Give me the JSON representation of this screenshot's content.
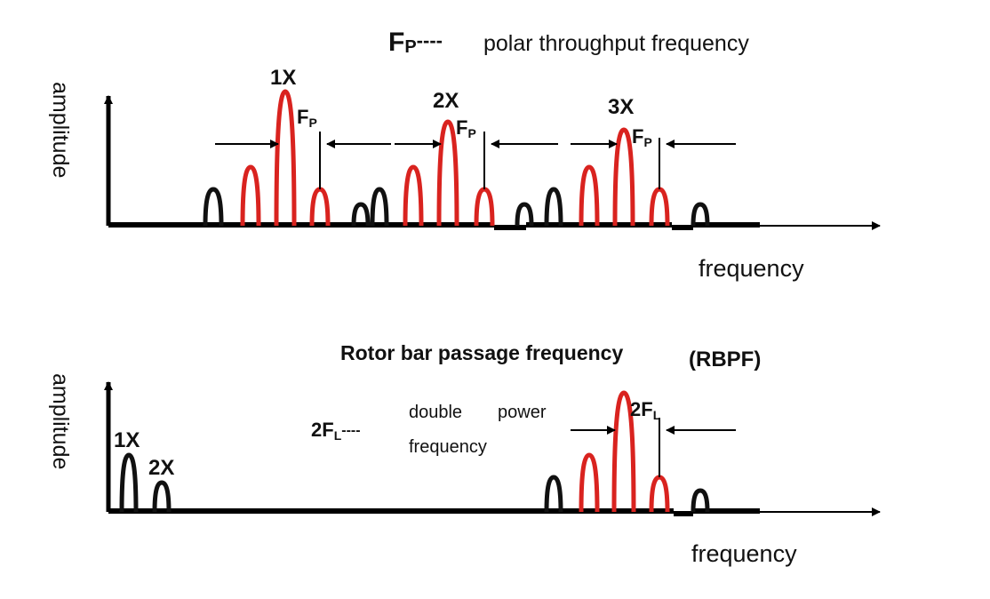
{
  "top_panel": {
    "legend_symbol_main": "F",
    "legend_symbol_sub": "P",
    "legend_dashes": "----",
    "legend_text": "polar throughput frequency",
    "ylabel": "amplitude",
    "xlabel": "frequency",
    "order_labels": [
      "1X",
      "2X",
      "3X"
    ],
    "sideband_label_main": "F",
    "sideband_label_sub": "P",
    "colors": {
      "baseline": "#000000",
      "peak_black": "#111111",
      "peak_red": "#d9231f"
    }
  },
  "bottom_panel": {
    "title": "Rotor bar passage frequency",
    "title_abbrev": "(RBPF)",
    "ylabel": "amplitude",
    "xlabel": "frequency",
    "left_labels": [
      "1X",
      "2X"
    ],
    "legend_symbol_main": "2F",
    "legend_symbol_sub": "L",
    "legend_dashes": "----",
    "legend_text_line1_a": "double",
    "legend_text_line1_b": "power",
    "legend_text_line2": "frequency",
    "sideband_label_main": "2F",
    "sideband_label_sub": "L"
  }
}
